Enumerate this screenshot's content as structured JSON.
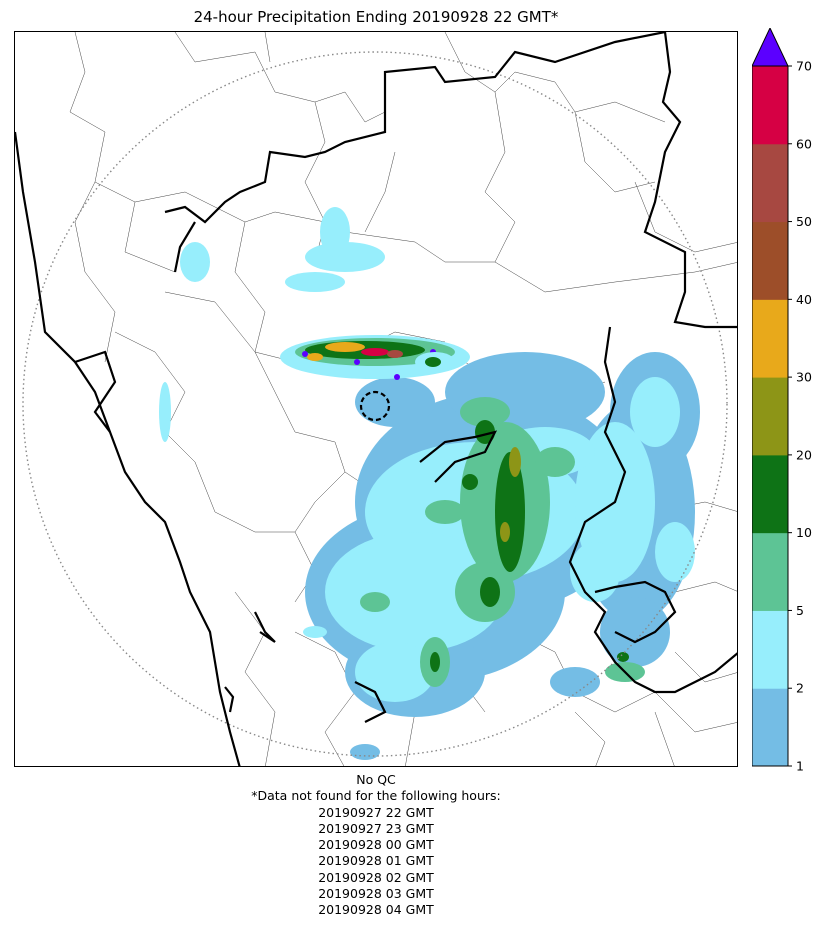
{
  "title": "24-hour Precipitation Ending 20190928 22 GMT*",
  "colorbar": {
    "levels": [
      {
        "low": "1",
        "color": "#74bde5"
      },
      {
        "low": "2",
        "color": "#97eefc"
      },
      {
        "low": "5",
        "color": "#5dc495"
      },
      {
        "low": "10",
        "color": "#0e7316"
      },
      {
        "low": "20",
        "color": "#8d9517"
      },
      {
        "low": "30",
        "color": "#e8a91b"
      },
      {
        "low": "40",
        "color": "#9d4e29"
      },
      {
        "low": "50",
        "color": "#a74841"
      },
      {
        "low": "60",
        "color": "#d60044"
      }
    ],
    "top_label": "70",
    "overflow_color": "#5b00ff"
  },
  "qc_note": "No QC",
  "missing_header": "*Data not found for the following hours:",
  "missing_hours": [
    "20190927 22 GMT",
    "20190927 23 GMT",
    "20190928 00 GMT",
    "20190928 01 GMT",
    "20190928 02 GMT",
    "20190928 03 GMT",
    "20190928 04 GMT"
  ]
}
